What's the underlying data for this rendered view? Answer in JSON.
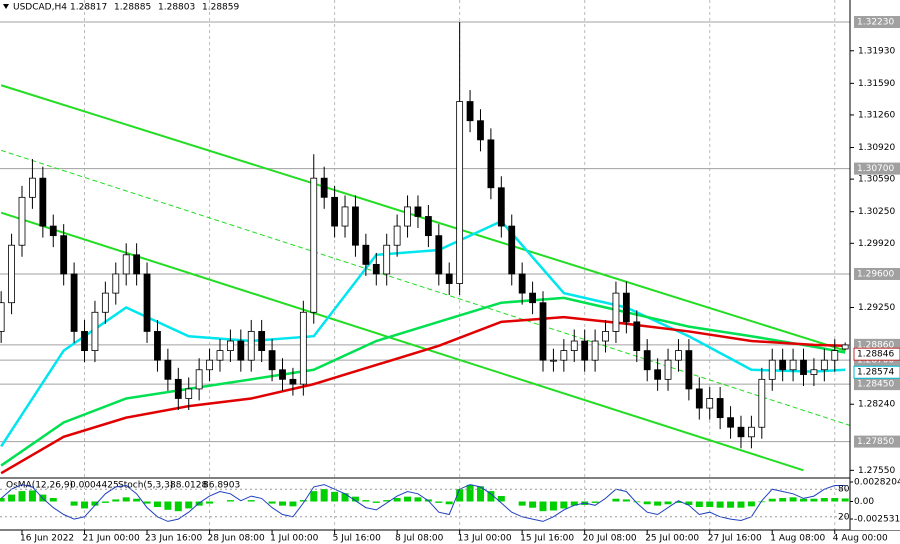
{
  "chart_data": {
    "type": "candlestick",
    "symbol": "USDCAD,H4",
    "header_values": [
      1.28817,
      1.28885,
      1.28803,
      1.28859
    ],
    "categories": [
      null,
      null,
      "16 Jun 2022",
      null,
      null,
      null,
      null,
      null,
      "21 Jun 00:00",
      null,
      null,
      null,
      null,
      null,
      "23 Jun 16:00",
      null,
      null,
      null,
      null,
      null,
      "28 Jun 08:00",
      null,
      null,
      null,
      null,
      null,
      "1 Jul 00:00",
      null,
      null,
      null,
      null,
      null,
      "5 Jul 16:00",
      null,
      null,
      null,
      null,
      null,
      "8 Jul 08:00",
      null,
      null,
      null,
      null,
      null,
      "13 Jul 00:00",
      null,
      null,
      null,
      null,
      null,
      "15 Jul 16:00",
      null,
      null,
      null,
      null,
      null,
      "20 Jul 08:00",
      null,
      null,
      null,
      null,
      null,
      "25 Jul 00:00",
      null,
      null,
      null,
      null,
      null,
      "27 Jul 16:00",
      null,
      null,
      null,
      null,
      null,
      "1 Aug 08:00",
      null,
      null,
      null,
      null,
      null,
      "4 Aug 00:00",
      null,
      null,
      null
    ],
    "ohlc": [
      [
        1.29,
        1.2942,
        1.2888,
        1.293
      ],
      [
        1.293,
        1.3002,
        1.2918,
        1.299
      ],
      [
        1.299,
        1.3052,
        1.2978,
        1.304
      ],
      [
        1.304,
        1.308,
        1.3028,
        1.306
      ],
      [
        1.306,
        1.3072,
        1.2998,
        1.301
      ],
      [
        1.301,
        1.3022,
        1.2988,
        1.3
      ],
      [
        1.3,
        1.3012,
        1.2948,
        1.296
      ],
      [
        1.296,
        1.2972,
        1.2888,
        1.29
      ],
      [
        1.29,
        1.2912,
        1.2868,
        1.288
      ],
      [
        1.288,
        1.2932,
        1.2868,
        1.292
      ],
      [
        1.292,
        1.2952,
        1.2908,
        1.294
      ],
      [
        1.294,
        1.2972,
        1.2928,
        1.296
      ],
      [
        1.296,
        1.2992,
        1.2948,
        1.298
      ],
      [
        1.298,
        1.2992,
        1.2948,
        1.296
      ],
      [
        1.296,
        1.2972,
        1.2888,
        1.29
      ],
      [
        1.29,
        1.2912,
        1.2858,
        1.287
      ],
      [
        1.287,
        1.2882,
        1.2838,
        1.285
      ],
      [
        1.285,
        1.2862,
        1.2818,
        1.283
      ],
      [
        1.283,
        1.2852,
        1.2818,
        1.284
      ],
      [
        1.284,
        1.2872,
        1.2828,
        1.286
      ],
      [
        1.286,
        1.2882,
        1.2848,
        1.287
      ],
      [
        1.287,
        1.2892,
        1.2858,
        1.288
      ],
      [
        1.288,
        1.2902,
        1.2868,
        1.289
      ],
      [
        1.289,
        1.2902,
        1.2858,
        1.287
      ],
      [
        1.287,
        1.2912,
        1.2858,
        1.29
      ],
      [
        1.29,
        1.2912,
        1.2868,
        1.288
      ],
      [
        1.288,
        1.2892,
        1.2848,
        1.286
      ],
      [
        1.286,
        1.2872,
        1.2838,
        1.285
      ],
      [
        1.285,
        1.2862,
        1.2833,
        1.2845
      ],
      [
        1.2845,
        1.2932,
        1.2833,
        1.292
      ],
      [
        1.292,
        1.3085,
        1.2908,
        1.306
      ],
      [
        1.306,
        1.3072,
        1.3028,
        1.304
      ],
      [
        1.304,
        1.3052,
        1.2998,
        1.301
      ],
      [
        1.301,
        1.3042,
        1.2998,
        1.303
      ],
      [
        1.303,
        1.3042,
        1.2978,
        1.299
      ],
      [
        1.299,
        1.3002,
        1.2958,
        1.297
      ],
      [
        1.297,
        1.2982,
        1.2948,
        1.296
      ],
      [
        1.296,
        1.3002,
        1.2948,
        1.299
      ],
      [
        1.299,
        1.3022,
        1.2978,
        1.301
      ],
      [
        1.301,
        1.3042,
        1.2998,
        1.303
      ],
      [
        1.303,
        1.3042,
        1.3008,
        1.302
      ],
      [
        1.302,
        1.3032,
        1.2988,
        1.3
      ],
      [
        1.3,
        1.3012,
        1.2948,
        1.296
      ],
      [
        1.296,
        1.2972,
        1.2938,
        1.295
      ],
      [
        1.295,
        1.3223,
        1.2938,
        1.314
      ],
      [
        1.314,
        1.3152,
        1.3108,
        1.312
      ],
      [
        1.312,
        1.3132,
        1.3088,
        1.31
      ],
      [
        1.31,
        1.3112,
        1.3038,
        1.305
      ],
      [
        1.305,
        1.3062,
        1.2998,
        1.301
      ],
      [
        1.301,
        1.3022,
        1.2948,
        1.296
      ],
      [
        1.296,
        1.2972,
        1.2928,
        1.294
      ],
      [
        1.294,
        1.2952,
        1.2918,
        1.293
      ],
      [
        1.293,
        1.2942,
        1.2858,
        1.287
      ],
      [
        1.287,
        1.2882,
        1.2858,
        1.287
      ],
      [
        1.287,
        1.2892,
        1.2858,
        1.288
      ],
      [
        1.288,
        1.2902,
        1.2868,
        1.289
      ],
      [
        1.289,
        1.2902,
        1.2858,
        1.287
      ],
      [
        1.287,
        1.2902,
        1.2858,
        1.289
      ],
      [
        1.289,
        1.2912,
        1.2878,
        1.29
      ],
      [
        1.29,
        1.2952,
        1.2888,
        1.294
      ],
      [
        1.294,
        1.2952,
        1.2898,
        1.291
      ],
      [
        1.291,
        1.2922,
        1.2868,
        1.288
      ],
      [
        1.288,
        1.2892,
        1.2848,
        1.286
      ],
      [
        1.286,
        1.2872,
        1.2838,
        1.285
      ],
      [
        1.285,
        1.2882,
        1.2838,
        1.287
      ],
      [
        1.287,
        1.2892,
        1.2858,
        1.288
      ],
      [
        1.288,
        1.2892,
        1.2828,
        1.284
      ],
      [
        1.284,
        1.2852,
        1.2808,
        1.282
      ],
      [
        1.282,
        1.2842,
        1.2808,
        1.283
      ],
      [
        1.283,
        1.2842,
        1.2798,
        1.281
      ],
      [
        1.281,
        1.2822,
        1.2788,
        1.28
      ],
      [
        1.28,
        1.2812,
        1.2778,
        1.279
      ],
      [
        1.279,
        1.2812,
        1.2778,
        1.28
      ],
      [
        1.28,
        1.2862,
        1.2788,
        1.285
      ],
      [
        1.285,
        1.2882,
        1.2838,
        1.287
      ],
      [
        1.287,
        1.2882,
        1.2848,
        1.286
      ],
      [
        1.286,
        1.2882,
        1.2848,
        1.287
      ],
      [
        1.287,
        1.2882,
        1.2843,
        1.2855
      ],
      [
        1.2855,
        1.2872,
        1.2843,
        1.286
      ],
      [
        1.286,
        1.2882,
        1.2848,
        1.287
      ],
      [
        1.287,
        1.2892,
        1.2858,
        1.288
      ],
      [
        1.28817,
        1.28885,
        1.28803,
        1.28859
      ]
    ],
    "series": [
      {
        "color": "#00e5ee",
        "x": [
          0,
          6,
          12,
          18,
          24,
          30,
          36,
          42,
          48,
          54,
          60,
          66,
          72,
          78,
          81
        ],
        "values": [
          1.278,
          1.288,
          1.2925,
          1.2895,
          1.289,
          1.2895,
          1.298,
          1.2985,
          1.3015,
          1.294,
          1.2925,
          1.2895,
          1.286,
          1.2858,
          1.286
        ]
      },
      {
        "color": "#00e050",
        "x": [
          0,
          6,
          12,
          18,
          24,
          30,
          36,
          42,
          48,
          54,
          60,
          66,
          72,
          78,
          81
        ],
        "values": [
          1.276,
          1.2805,
          1.283,
          1.284,
          1.285,
          1.286,
          1.289,
          1.291,
          1.293,
          1.2935,
          1.292,
          1.2905,
          1.2895,
          1.2884,
          1.2878
        ]
      },
      {
        "color": "#e00000",
        "x": [
          0,
          6,
          12,
          18,
          24,
          30,
          36,
          42,
          48,
          54,
          60,
          66,
          72,
          78,
          81
        ],
        "values": [
          1.2752,
          1.279,
          1.281,
          1.2822,
          1.283,
          1.2845,
          1.2865,
          1.2885,
          1.291,
          1.2915,
          1.2908,
          1.29,
          1.289,
          1.2886,
          1.2885
        ]
      }
    ],
    "trendlines": [
      {
        "x": [
          0,
          81
        ],
        "values": [
          1.3157,
          1.288
        ],
        "dashed": false
      },
      {
        "x": [
          0,
          82
        ],
        "values": [
          1.3089,
          1.28
        ],
        "dashed": true
      },
      {
        "x": [
          0,
          77
        ],
        "values": [
          1.3024,
          1.2755
        ],
        "dashed": false
      }
    ],
    "ylim": [
      1.2747,
      1.3246
    ],
    "yticks": [
      {
        "value": 1.3193,
        "label": "1.31930"
      },
      {
        "value": 1.3159,
        "label": "1.31590"
      },
      {
        "value": 1.3126,
        "label": "1.31260"
      },
      {
        "value": 1.3092,
        "label": "1.30920"
      },
      {
        "value": 1.3059,
        "label": "1.30590"
      },
      {
        "value": 1.3025,
        "label": "1.30250"
      },
      {
        "value": 1.2992,
        "label": "1.29920"
      },
      {
        "value": 1.2925,
        "label": "1.29250"
      },
      {
        "value": 1.2824,
        "label": "1.28240"
      },
      {
        "value": 1.2755,
        "label": "1.27550"
      }
    ],
    "levels": [
      {
        "value": 1.3223,
        "label": "1.32230"
      },
      {
        "value": 1.307,
        "label": "1.30700"
      },
      {
        "value": 1.296,
        "label": "1.29600"
      },
      {
        "value": 1.2886,
        "label": "1.28860"
      },
      {
        "value": 1.287,
        "label": "1.28700"
      },
      {
        "value": 1.2845,
        "label": "1.28450"
      },
      {
        "value": 1.2785,
        "label": "1.27850"
      }
    ],
    "price_markers": [
      1.28846,
      1.28574
    ],
    "grid": true,
    "indicator": {
      "osma_name": "OsMA(12,26,9)",
      "osma_value": 0.0004425,
      "stoch_name": "Stoch(5,3,3)",
      "stoch_main": 88.0128,
      "stoch_signal": 86.8903,
      "osma_ylim": [
        -0.0025314,
        0.0028204
      ],
      "osma_ticks": [
        0.0028204,
        {
          "value": 0,
          "label": "0.00"
        },
        -0.0025314
      ],
      "osma_color": "#00d000",
      "osma": [
        0.0005,
        0.001,
        0.0015,
        0.0016,
        0.001,
        0.0005,
        0,
        -0.0006,
        -0.001,
        -0.0006,
        -0.0002,
        0.0003,
        0.0006,
        0.0004,
        -0.0003,
        -0.0008,
        -0.0012,
        -0.0014,
        -0.001,
        -0.0006,
        -0.0003,
        0,
        0.0002,
        0,
        0.0002,
        0,
        -0.0003,
        -0.0006,
        -0.0007,
        0.0002,
        0.0015,
        0.0018,
        0.0014,
        0.0012,
        0.0007,
        0.0002,
        -0.0002,
        0.0002,
        0.0005,
        0.0007,
        0.0006,
        0.0003,
        -0.0002,
        -0.0004,
        0.0018,
        0.0024,
        0.0022,
        0.0015,
        0.0008,
        0,
        -0.0006,
        -0.0009,
        -0.0014,
        -0.0013,
        -0.001,
        -0.0006,
        -0.0005,
        -0.0002,
        0,
        0.0004,
        0.0003,
        -0.0001,
        -0.0004,
        -0.0006,
        -0.0004,
        -0.0002,
        -0.0005,
        -0.0008,
        -0.0008,
        -0.0009,
        -0.0009,
        -0.0009,
        -0.0007,
        -0.0001,
        0.0004,
        0.0005,
        0.0006,
        0.0004,
        0.0004,
        0.0005,
        0.0005,
        0.0004425
      ],
      "stoch_ylim": [
        0,
        100
      ],
      "stoch_ticks": [
        80,
        20
      ],
      "stoch_color": "#2040c0",
      "stoch": [
        60,
        80,
        90,
        85,
        60,
        40,
        25,
        15,
        20,
        45,
        70,
        85,
        88,
        70,
        40,
        20,
        10,
        15,
        30,
        50,
        65,
        75,
        70,
        55,
        65,
        60,
        40,
        25,
        20,
        50,
        85,
        90,
        80,
        70,
        55,
        40,
        35,
        50,
        65,
        75,
        70,
        55,
        30,
        25,
        80,
        90,
        85,
        70,
        50,
        30,
        20,
        15,
        10,
        20,
        35,
        45,
        50,
        45,
        60,
        80,
        75,
        50,
        30,
        25,
        40,
        55,
        45,
        25,
        30,
        20,
        15,
        12,
        20,
        55,
        80,
        75,
        70,
        60,
        65,
        80,
        88,
        88.0128
      ]
    }
  }
}
